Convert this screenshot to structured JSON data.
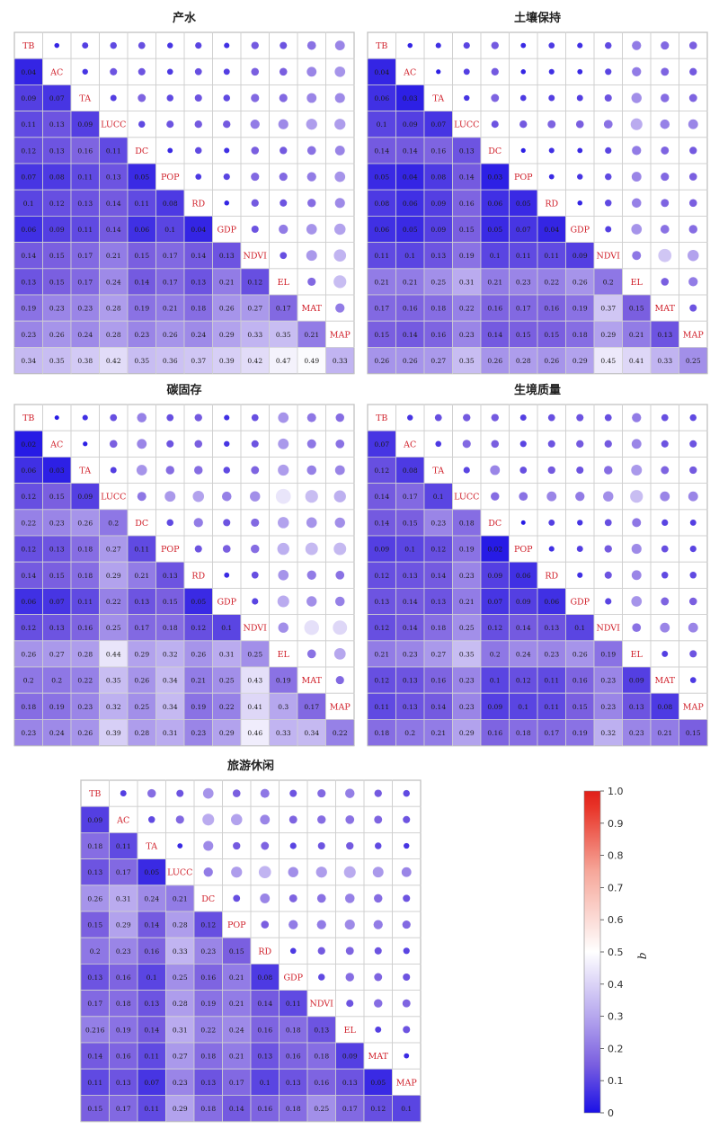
{
  "variables": [
    "TB",
    "AC",
    "TA",
    "LUCC",
    "DC",
    "POP",
    "RD",
    "GDP",
    "NDVI",
    "EL",
    "MAT",
    "MAP"
  ],
  "colorbar": {
    "label": "q",
    "min": 0,
    "max": 1,
    "ticks": [
      "0",
      "0.1",
      "0.2",
      "0.3",
      "0.4",
      "0.5",
      "0.6",
      "0.7",
      "0.8",
      "0.9",
      "1.0"
    ],
    "stops": [
      "#1a10e6",
      "#7a5fe0",
      "#b6a7ee",
      "#ffffff",
      "#f6a79a",
      "#e83428",
      "#e0201a"
    ]
  },
  "label_color": "#d0202a",
  "chart_data": [
    {
      "type": "heatmap",
      "title": "产水",
      "lower": [
        [
          0.04
        ],
        [
          0.09,
          0.07
        ],
        [
          0.11,
          0.13,
          0.09
        ],
        [
          0.12,
          0.13,
          0.16,
          0.11
        ],
        [
          0.07,
          0.08,
          0.11,
          0.13,
          0.05
        ],
        [
          0.1,
          0.12,
          0.13,
          0.14,
          0.11,
          0.08
        ],
        [
          0.06,
          0.09,
          0.11,
          0.14,
          0.06,
          0.1,
          0.04
        ],
        [
          0.14,
          0.15,
          0.17,
          0.21,
          0.15,
          0.17,
          0.14,
          0.13
        ],
        [
          0.13,
          0.15,
          0.17,
          0.24,
          0.14,
          0.17,
          0.13,
          0.21,
          0.12
        ],
        [
          0.19,
          0.23,
          0.23,
          0.28,
          0.19,
          0.21,
          0.18,
          0.26,
          0.27,
          0.17
        ],
        [
          0.23,
          0.26,
          0.24,
          0.28,
          0.23,
          0.26,
          0.24,
          0.29,
          0.33,
          0.35,
          0.21
        ]
      ],
      "bottom_row": [
        0.34,
        0.35,
        0.38,
        0.42,
        0.35,
        0.36,
        0.37,
        0.39,
        0.42,
        0.47,
        0.49,
        0.33
      ]
    },
    {
      "type": "heatmap",
      "title": "土壤保持",
      "lower": [
        [
          0.04
        ],
        [
          0.06,
          0.03
        ],
        [
          0.1,
          0.09,
          0.07
        ],
        [
          0.14,
          0.14,
          0.16,
          0.13
        ],
        [
          0.05,
          0.04,
          0.08,
          0.14,
          0.03
        ],
        [
          0.08,
          0.06,
          0.09,
          0.16,
          0.06,
          0.05
        ],
        [
          0.06,
          0.05,
          0.09,
          0.15,
          0.05,
          0.07,
          0.04
        ],
        [
          0.11,
          0.1,
          0.13,
          0.19,
          0.1,
          0.11,
          0.11,
          0.09
        ],
        [
          0.21,
          0.21,
          0.25,
          0.31,
          0.21,
          0.23,
          0.22,
          0.26,
          0.2
        ],
        [
          0.17,
          0.16,
          0.18,
          0.22,
          0.16,
          0.17,
          0.16,
          0.19,
          0.37,
          0.15
        ],
        [
          0.15,
          0.14,
          0.16,
          0.23,
          0.14,
          0.15,
          0.15,
          0.18,
          0.29,
          0.21,
          0.13
        ]
      ],
      "bottom_row": [
        0.26,
        0.26,
        0.27,
        0.35,
        0.26,
        0.28,
        0.26,
        0.29,
        0.45,
        0.41,
        0.33,
        0.25
      ]
    },
    {
      "type": "heatmap",
      "title": "碳固存",
      "lower": [
        [
          0.02
        ],
        [
          0.06,
          0.03
        ],
        [
          0.12,
          0.15,
          0.09
        ],
        [
          0.22,
          0.23,
          0.26,
          0.2
        ],
        [
          0.12,
          0.13,
          0.18,
          0.27,
          0.11
        ],
        [
          0.14,
          0.15,
          0.18,
          0.29,
          0.21,
          0.13
        ],
        [
          0.06,
          0.07,
          0.11,
          0.22,
          0.13,
          0.15,
          0.05
        ],
        [
          0.12,
          0.13,
          0.16,
          0.25,
          0.17,
          0.18,
          0.12,
          0.1
        ],
        [
          0.26,
          0.27,
          0.28,
          0.44,
          0.29,
          0.32,
          0.26,
          0.31,
          0.25
        ],
        [
          0.2,
          0.2,
          0.22,
          0.35,
          0.26,
          0.34,
          0.21,
          0.25,
          0.43,
          0.19
        ],
        [
          0.18,
          0.19,
          0.23,
          0.32,
          0.25,
          0.34,
          0.19,
          0.22,
          0.41,
          0.3,
          0.17
        ]
      ],
      "bottom_row": [
        0.23,
        0.24,
        0.26,
        0.39,
        0.28,
        0.31,
        0.23,
        0.29,
        0.46,
        0.33,
        0.34,
        0.22
      ]
    },
    {
      "type": "heatmap",
      "title": "生境质量",
      "lower": [
        [
          0.07
        ],
        [
          0.12,
          0.08
        ],
        [
          0.14,
          0.17,
          0.1
        ],
        [
          0.14,
          0.15,
          0.23,
          0.18
        ],
        [
          0.09,
          0.1,
          0.12,
          0.19,
          0.02
        ],
        [
          0.12,
          0.13,
          0.14,
          0.23,
          0.09,
          0.06
        ],
        [
          0.13,
          0.14,
          0.13,
          0.21,
          0.07,
          0.09,
          0.06
        ],
        [
          0.12,
          0.14,
          0.18,
          0.25,
          0.12,
          0.14,
          0.13,
          0.1
        ],
        [
          0.21,
          0.23,
          0.27,
          0.35,
          0.2,
          0.24,
          0.23,
          0.26,
          0.19
        ],
        [
          0.12,
          0.13,
          0.16,
          0.23,
          0.1,
          0.12,
          0.11,
          0.16,
          0.23,
          0.09
        ],
        [
          0.11,
          0.13,
          0.14,
          0.23,
          0.09,
          0.1,
          0.11,
          0.15,
          0.23,
          0.13,
          0.08
        ]
      ],
      "bottom_row": [
        0.18,
        0.2,
        0.21,
        0.29,
        0.16,
        0.18,
        0.17,
        0.19,
        0.32,
        0.23,
        0.21,
        0.15
      ]
    },
    {
      "type": "heatmap",
      "title": "旅游休闲",
      "lower": [
        [
          0.09
        ],
        [
          0.18,
          0.11
        ],
        [
          0.13,
          0.17,
          0.05
        ],
        [
          0.26,
          0.31,
          0.24,
          0.21
        ],
        [
          0.15,
          0.29,
          0.14,
          0.28,
          0.12
        ],
        [
          0.2,
          0.23,
          0.16,
          0.33,
          0.23,
          0.15
        ],
        [
          0.13,
          0.16,
          0.1,
          0.25,
          0.16,
          0.21,
          0.08
        ],
        [
          0.17,
          0.18,
          0.13,
          0.28,
          0.19,
          0.21,
          0.14,
          0.11
        ],
        [
          0.216,
          0.19,
          0.14,
          0.31,
          0.22,
          0.24,
          0.16,
          0.18,
          0.13
        ],
        [
          0.14,
          0.16,
          0.11,
          0.27,
          0.18,
          0.21,
          0.13,
          0.16,
          0.18,
          0.09
        ],
        [
          0.11,
          0.13,
          0.07,
          0.23,
          0.13,
          0.17,
          0.1,
          0.13,
          0.16,
          0.13,
          0.05
        ]
      ],
      "bottom_row": [
        0.15,
        0.17,
        0.11,
        0.29,
        0.18,
        0.14,
        0.16,
        0.18,
        0.25,
        0.17,
        0.12,
        0.1
      ]
    }
  ]
}
